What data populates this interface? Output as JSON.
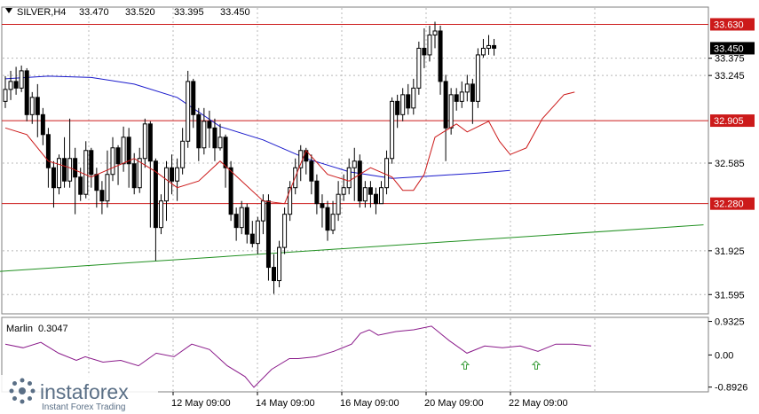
{
  "header": {
    "symbol": "SILVER,H4",
    "open": "33.470",
    "high": "33.520",
    "low": "33.395",
    "close": "33.450"
  },
  "indicator": {
    "name": "Marlin",
    "value": "0.3047"
  },
  "watermark": {
    "brand": "instaforex",
    "tagline": "Instant Forex Trading"
  },
  "colors": {
    "up_candle": "#ffffff",
    "down_candle": "#000000",
    "ma_slow": "#1a1acc",
    "ma_fast": "#cc1a1a",
    "trend_line": "#209020",
    "level_line": "#cc1a1a",
    "level_tag": "#cc1a1a",
    "price_tag": "#000000",
    "oscillator": "#8a1a8a",
    "signal_arrow": "#40a040",
    "grid": "#b8b8b8"
  },
  "chart_data": {
    "type": "candlestick",
    "timeframe": "H4",
    "ylim": [
      31.45,
      33.76
    ],
    "y_ticks": [
      "33.375",
      "33.245",
      "32.585",
      "31.925",
      "31.595"
    ],
    "x_ticks": [
      "12 May 09:00",
      "14 May 09:00",
      "16 May 09:00",
      "20 May 09:00",
      "22 May 09:00"
    ],
    "levels": [
      {
        "value": 33.63,
        "label": "33.630"
      },
      {
        "value": 32.905,
        "label": "32.905"
      },
      {
        "value": 32.28,
        "label": "32.280"
      }
    ],
    "current_price": {
      "value": 33.45,
      "label": "33.450"
    },
    "candles": [
      [
        33.05,
        33.14,
        33.24,
        33.0
      ],
      [
        33.14,
        33.2,
        33.28,
        33.06
      ],
      [
        33.2,
        33.15,
        33.31,
        33.1
      ],
      [
        33.15,
        33.28,
        33.32,
        33.12
      ],
      [
        33.28,
        32.95,
        33.3,
        32.9
      ],
      [
        32.95,
        33.08,
        33.12,
        32.88
      ],
      [
        33.08,
        32.95,
        33.18,
        32.78
      ],
      [
        32.95,
        32.8,
        33.0,
        32.72
      ],
      [
        32.8,
        32.55,
        32.85,
        32.4
      ],
      [
        32.55,
        32.4,
        32.6,
        32.25
      ],
      [
        32.4,
        32.62,
        32.65,
        32.35
      ],
      [
        32.62,
        32.45,
        32.78,
        32.4
      ],
      [
        32.45,
        32.62,
        32.92,
        32.4
      ],
      [
        32.62,
        32.48,
        32.7,
        32.2
      ],
      [
        32.48,
        32.35,
        32.55,
        32.3
      ],
      [
        32.35,
        32.68,
        32.75,
        32.32
      ],
      [
        32.68,
        32.5,
        32.7,
        32.4
      ],
      [
        32.5,
        32.38,
        32.55,
        32.25
      ],
      [
        32.38,
        32.3,
        32.45,
        32.2
      ],
      [
        32.3,
        32.5,
        32.68,
        32.25
      ],
      [
        32.5,
        32.7,
        32.78,
        32.45
      ],
      [
        32.7,
        32.58,
        32.72,
        32.42
      ],
      [
        32.58,
        32.78,
        32.86,
        32.52
      ],
      [
        32.78,
        32.58,
        32.85,
        32.4
      ],
      [
        32.58,
        32.4,
        32.66,
        32.35
      ],
      [
        32.4,
        32.62,
        32.7,
        32.36
      ],
      [
        32.62,
        32.88,
        32.92,
        32.55
      ],
      [
        32.88,
        32.6,
        32.9,
        32.1
      ],
      [
        32.6,
        32.1,
        32.62,
        31.85
      ],
      [
        32.1,
        32.3,
        32.35,
        32.05
      ],
      [
        32.3,
        32.55,
        32.6,
        32.15
      ],
      [
        32.55,
        32.45,
        32.65,
        32.35
      ],
      [
        32.45,
        32.55,
        32.62,
        32.3
      ],
      [
        32.55,
        32.75,
        32.85,
        32.5
      ],
      [
        32.75,
        33.2,
        33.28,
        32.7
      ],
      [
        33.2,
        32.95,
        33.22,
        32.85
      ],
      [
        32.95,
        32.7,
        33.0,
        32.6
      ],
      [
        32.7,
        32.9,
        33.0,
        32.65
      ],
      [
        32.9,
        32.85,
        32.98,
        32.7
      ],
      [
        32.85,
        32.7,
        32.92,
        32.6
      ],
      [
        32.7,
        32.78,
        32.88,
        32.68
      ],
      [
        32.78,
        32.55,
        32.8,
        32.4
      ],
      [
        32.55,
        32.2,
        32.6,
        32.15
      ],
      [
        32.2,
        32.1,
        32.25,
        32.0
      ],
      [
        32.1,
        32.25,
        32.3,
        32.05
      ],
      [
        32.25,
        32.05,
        32.28,
        31.98
      ],
      [
        32.05,
        31.98,
        32.15,
        31.95
      ],
      [
        31.98,
        32.15,
        32.18,
        31.9
      ],
      [
        32.15,
        32.3,
        32.35,
        32.05
      ],
      [
        32.3,
        31.8,
        32.35,
        31.7
      ],
      [
        31.8,
        31.7,
        31.9,
        31.6
      ],
      [
        31.7,
        31.95,
        32.0,
        31.65
      ],
      [
        31.95,
        32.2,
        32.25,
        31.9
      ],
      [
        32.2,
        32.4,
        32.45,
        32.15
      ],
      [
        32.4,
        32.55,
        32.62,
        32.35
      ],
      [
        32.55,
        32.68,
        32.72,
        32.45
      ],
      [
        32.68,
        32.6,
        32.7,
        32.5
      ],
      [
        32.6,
        32.45,
        32.65,
        32.35
      ],
      [
        32.45,
        32.28,
        32.5,
        32.2
      ],
      [
        32.28,
        32.25,
        32.35,
        32.1
      ],
      [
        32.25,
        32.08,
        32.3,
        32.0
      ],
      [
        32.08,
        32.2,
        32.3,
        32.05
      ],
      [
        32.2,
        32.35,
        32.45,
        32.15
      ],
      [
        32.35,
        32.4,
        32.5,
        32.3
      ],
      [
        32.4,
        32.55,
        32.62,
        32.35
      ],
      [
        32.55,
        32.6,
        32.7,
        32.3
      ],
      [
        32.6,
        32.3,
        32.65,
        32.25
      ],
      [
        32.3,
        32.4,
        32.45,
        32.25
      ],
      [
        32.4,
        32.35,
        32.45,
        32.25
      ],
      [
        32.35,
        32.28,
        32.4,
        32.2
      ],
      [
        32.28,
        32.4,
        32.45,
        32.3
      ],
      [
        32.4,
        32.62,
        32.68,
        32.35
      ],
      [
        32.62,
        33.05,
        33.08,
        32.58
      ],
      [
        33.05,
        32.95,
        33.1,
        32.85
      ],
      [
        32.95,
        33.1,
        33.15,
        32.9
      ],
      [
        33.1,
        33.0,
        33.18,
        32.95
      ],
      [
        33.0,
        33.15,
        33.22,
        32.95
      ],
      [
        33.15,
        33.45,
        33.5,
        33.1
      ],
      [
        33.45,
        33.4,
        33.6,
        33.3
      ],
      [
        33.4,
        33.55,
        33.62,
        33.35
      ],
      [
        33.55,
        33.58,
        33.65,
        33.45
      ],
      [
        33.58,
        33.2,
        33.62,
        33.1
      ],
      [
        33.2,
        32.85,
        33.25,
        32.6
      ],
      [
        32.85,
        33.1,
        33.15,
        32.8
      ],
      [
        33.1,
        33.05,
        33.15,
        32.98
      ],
      [
        33.05,
        33.12,
        33.2,
        33.0
      ],
      [
        33.12,
        33.18,
        33.25,
        33.05
      ],
      [
        33.18,
        33.05,
        33.22,
        32.88
      ],
      [
        33.05,
        33.4,
        33.45,
        33.0
      ],
      [
        33.4,
        33.45,
        33.52,
        33.38
      ],
      [
        33.45,
        33.47,
        33.55,
        33.4
      ],
      [
        33.47,
        33.45,
        33.52,
        33.395
      ]
    ],
    "ma_slow": [
      [
        0,
        33.22
      ],
      [
        8,
        33.24
      ],
      [
        16,
        33.23
      ],
      [
        24,
        33.18
      ],
      [
        32,
        33.08
      ],
      [
        40,
        32.86
      ],
      [
        48,
        32.76
      ],
      [
        56,
        32.62
      ],
      [
        64,
        32.52
      ],
      [
        72,
        32.47
      ],
      [
        80,
        32.49
      ],
      [
        88,
        32.51
      ],
      [
        94,
        32.53
      ]
    ],
    "ma_fast": [
      [
        0,
        32.85
      ],
      [
        4,
        32.8
      ],
      [
        8,
        32.6
      ],
      [
        12,
        32.55
      ],
      [
        16,
        32.48
      ],
      [
        20,
        32.55
      ],
      [
        24,
        32.62
      ],
      [
        28,
        32.52
      ],
      [
        32,
        32.4
      ],
      [
        36,
        32.45
      ],
      [
        40,
        32.6
      ],
      [
        44,
        32.45
      ],
      [
        48,
        32.3
      ],
      [
        52,
        32.28
      ],
      [
        54,
        32.48
      ],
      [
        56,
        32.68
      ],
      [
        60,
        32.5
      ],
      [
        64,
        32.45
      ],
      [
        68,
        32.55
      ],
      [
        72,
        32.48
      ],
      [
        74,
        32.38
      ],
      [
        76,
        32.38
      ],
      [
        78,
        32.5
      ],
      [
        80,
        32.78
      ],
      [
        84,
        32.88
      ],
      [
        86,
        32.82
      ],
      [
        90,
        32.9
      ],
      [
        92,
        32.75
      ],
      [
        94,
        32.65
      ],
      [
        97,
        32.7
      ],
      [
        100,
        32.92
      ],
      [
        104,
        33.1
      ],
      [
        106,
        33.12
      ]
    ],
    "trend_line": [
      [
        -1,
        31.77
      ],
      [
        130,
        32.12
      ]
    ],
    "oscillator": {
      "name": "Marlin",
      "ylim": [
        -1.0,
        1.02
      ],
      "y_ticks": [
        "0.9325",
        "0.00",
        "-0.8926"
      ],
      "values": [
        [
          0,
          0.3
        ],
        [
          4,
          0.2
        ],
        [
          8,
          0.35
        ],
        [
          12,
          0.05
        ],
        [
          16,
          -0.15
        ],
        [
          18,
          -0.05
        ],
        [
          22,
          -0.2
        ],
        [
          26,
          -0.15
        ],
        [
          30,
          -0.3
        ],
        [
          34,
          0.05
        ],
        [
          38,
          -0.05
        ],
        [
          42,
          0.3
        ],
        [
          46,
          0.15
        ],
        [
          50,
          -0.3
        ],
        [
          54,
          -0.6
        ],
        [
          56,
          -0.9
        ],
        [
          60,
          -0.4
        ],
        [
          64,
          -0.1
        ],
        [
          66,
          -0.1
        ],
        [
          70,
          -0.05
        ],
        [
          74,
          0.1
        ],
        [
          78,
          0.3
        ],
        [
          80,
          0.6
        ],
        [
          82,
          0.7
        ],
        [
          84,
          0.55
        ],
        [
          88,
          0.65
        ],
        [
          92,
          0.7
        ],
        [
          96,
          0.8
        ],
        [
          100,
          0.4
        ],
        [
          104,
          0.05
        ],
        [
          108,
          0.25
        ],
        [
          112,
          0.2
        ],
        [
          116,
          0.25
        ],
        [
          120,
          0.1
        ],
        [
          124,
          0.3
        ],
        [
          128,
          0.3
        ],
        [
          132,
          0.25
        ]
      ],
      "signal_arrows": [
        104,
        120
      ]
    }
  }
}
